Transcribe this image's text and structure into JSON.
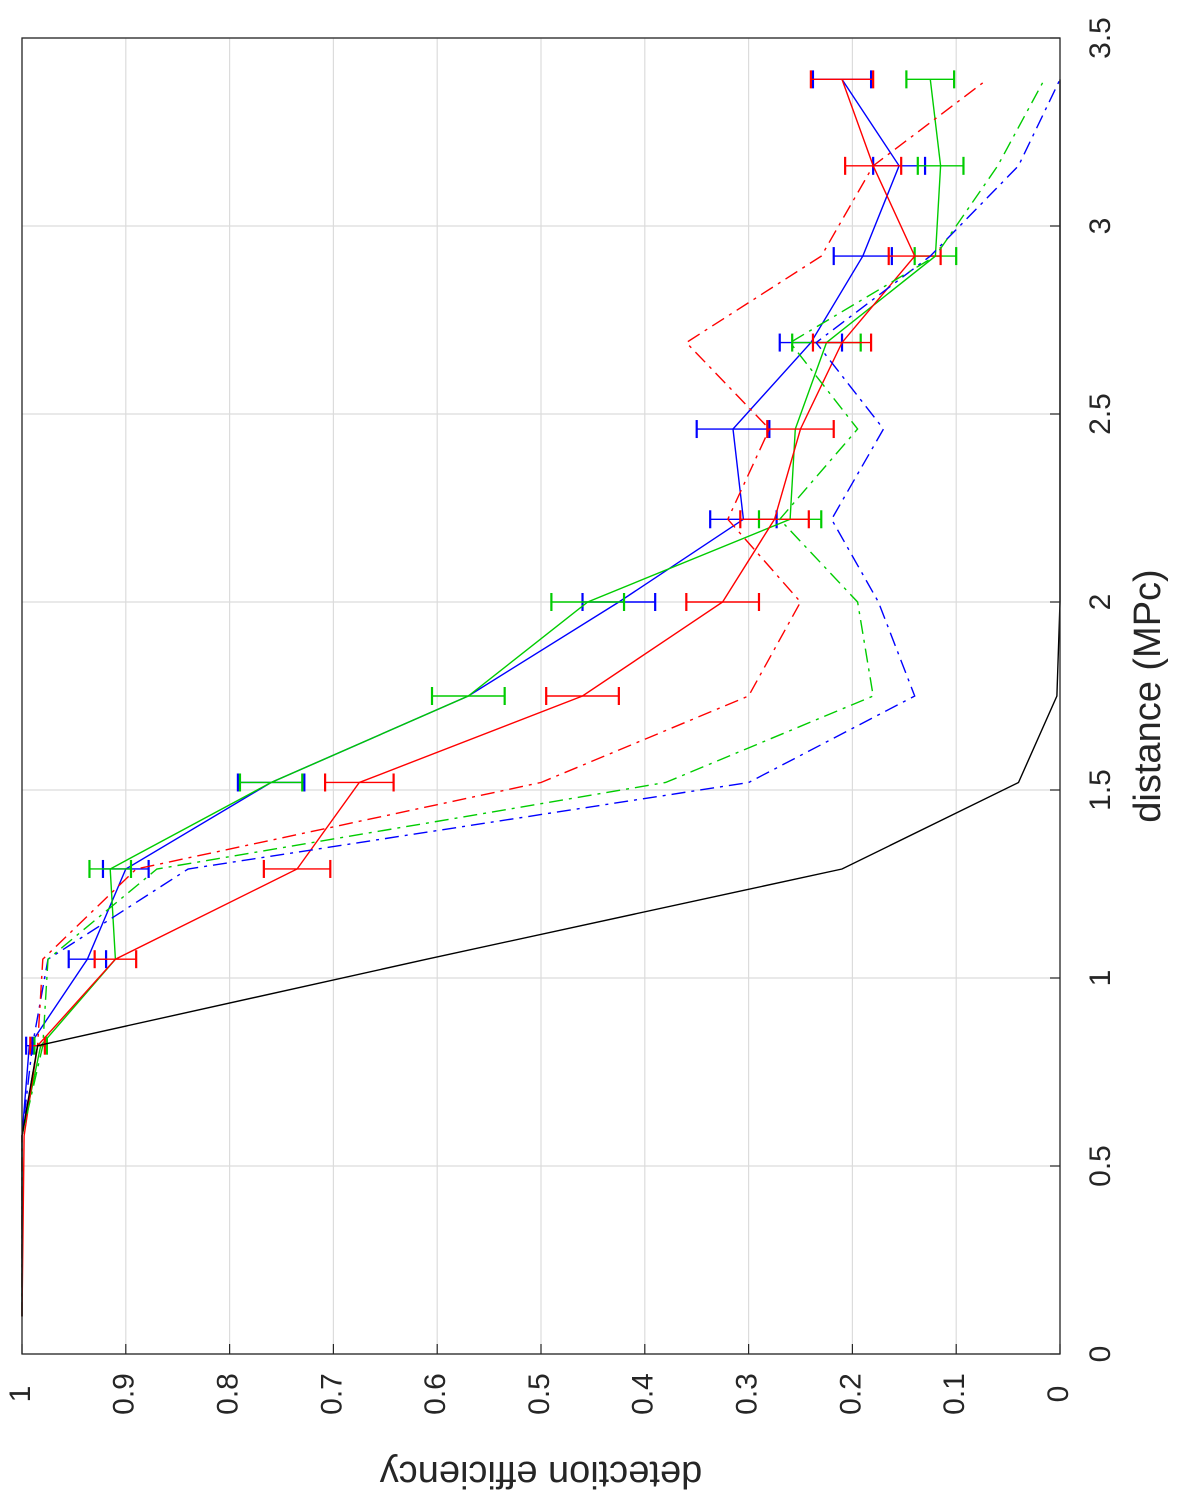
{
  "chart_data": {
    "type": "line",
    "orientation": "rotated-90-clockwise",
    "xlabel": "distance (MPc)",
    "ylabel": "detection efficiency",
    "xlim": [
      0,
      3.5
    ],
    "ylim": [
      0,
      1
    ],
    "xticks": [
      "0",
      "0.5",
      "1",
      "1.5",
      "2",
      "2.5",
      "3",
      "3.5"
    ],
    "yticks": [
      "0",
      "0.1",
      "0.2",
      "0.3",
      "0.4",
      "0.5",
      "0.6",
      "0.7",
      "0.8",
      "0.9",
      "1"
    ],
    "grid": true,
    "legend": false,
    "series": [
      {
        "color": "#0000ff",
        "style": "solid",
        "x": [
          0.1,
          0.58,
          0.82,
          1.05,
          1.29,
          1.52,
          1.75,
          2.0,
          2.22,
          2.46,
          2.69,
          2.92,
          3.16,
          3.39
        ],
        "y": [
          1.0,
          1.0,
          0.993,
          0.937,
          0.9,
          0.76,
          0.57,
          0.425,
          0.305,
          0.315,
          0.24,
          0.19,
          0.155,
          0.21
        ],
        "err": [
          0,
          0,
          0.003,
          0.018,
          0.022,
          0.032,
          0,
          0.035,
          0.032,
          0.035,
          0.03,
          0.028,
          0.025,
          0.028
        ]
      },
      {
        "color": "#00cc00",
        "style": "solid",
        "x": [
          0.1,
          0.58,
          0.82,
          1.05,
          1.29,
          1.52,
          1.75,
          2.0,
          2.22,
          2.46,
          2.69,
          2.92,
          3.16,
          3.39
        ],
        "y": [
          1.0,
          1.0,
          0.982,
          0.91,
          0.915,
          0.76,
          0.57,
          0.455,
          0.26,
          0.255,
          0.225,
          0.12,
          0.115,
          0.125
        ],
        "err": [
          0,
          0,
          0.006,
          0,
          0.02,
          0.03,
          0.035,
          0.035,
          0.03,
          0,
          0.033,
          0.02,
          0.022,
          0.023
        ]
      },
      {
        "color": "#ff0000",
        "style": "solid",
        "x": [
          0.1,
          0.58,
          0.82,
          1.05,
          1.29,
          1.52,
          1.75,
          2.0,
          2.22,
          2.46,
          2.69,
          2.92,
          3.16,
          3.39
        ],
        "y": [
          1.0,
          0.998,
          0.985,
          0.91,
          0.735,
          0.675,
          0.46,
          0.325,
          0.275,
          0.25,
          0.21,
          0.14,
          0.18,
          0.21
        ],
        "err": [
          0,
          0,
          0.007,
          0.02,
          0.032,
          0.033,
          0.035,
          0.035,
          0.033,
          0.032,
          0.028,
          0.025,
          0.027,
          0.03
        ]
      },
      {
        "color": "#0000ff",
        "style": "dash-dot",
        "x": [
          0.1,
          0.58,
          0.82,
          1.05,
          1.29,
          1.52,
          1.75,
          2.0,
          2.22,
          2.46,
          2.69,
          2.92,
          3.16,
          3.39
        ],
        "y": [
          1.0,
          1.0,
          0.99,
          0.975,
          0.84,
          0.3,
          0.14,
          0.175,
          0.22,
          0.17,
          0.235,
          0.125,
          0.04,
          0.0
        ],
        "err": []
      },
      {
        "color": "#00cc00",
        "style": "dash-dot",
        "x": [
          0.1,
          0.58,
          0.82,
          1.05,
          1.29,
          1.52,
          1.75,
          2.0,
          2.22,
          2.46,
          2.69,
          2.92,
          3.16,
          3.39
        ],
        "y": [
          1.0,
          1.0,
          0.98,
          0.975,
          0.87,
          0.38,
          0.18,
          0.195,
          0.27,
          0.195,
          0.26,
          0.12,
          0.06,
          0.015
        ],
        "err": []
      },
      {
        "color": "#ff0000",
        "style": "dash-dot",
        "x": [
          0.1,
          0.58,
          0.82,
          1.05,
          1.29,
          1.52,
          1.75,
          2.0,
          2.22,
          2.46,
          2.69,
          2.92,
          3.16,
          3.39
        ],
        "y": [
          1.0,
          1.0,
          0.985,
          0.98,
          0.89,
          0.5,
          0.3,
          0.25,
          0.32,
          0.28,
          0.36,
          0.23,
          0.18,
          0.07
        ],
        "err": []
      },
      {
        "color": "#000000",
        "style": "solid",
        "x": [
          0.1,
          0.58,
          0.82,
          1.05,
          1.29,
          1.52,
          1.75,
          2.0,
          2.22,
          2.46,
          2.69,
          2.92,
          3.16,
          3.39
        ],
        "y": [
          1.0,
          1.0,
          0.985,
          0.61,
          0.21,
          0.04,
          0.003,
          0.0,
          0.0,
          0.0,
          0.0,
          0.0,
          0.0,
          0.0
        ],
        "err": []
      }
    ]
  }
}
